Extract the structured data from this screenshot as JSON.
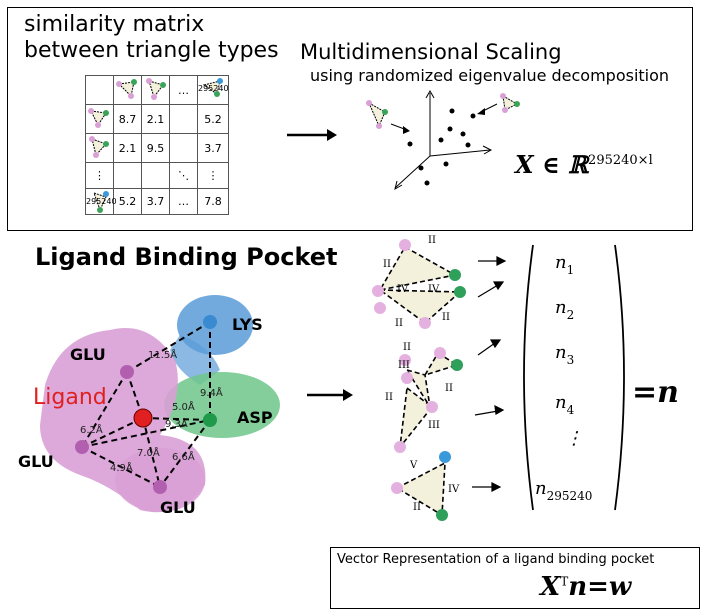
{
  "mds_panel": {
    "title_line1": "similarity matrix",
    "title_line2": "between triangle types",
    "mds_title": "Multidimensional Scaling",
    "mds_subtitle": "using randomized eigenvalue decomposition",
    "matrix": {
      "header_ids": [
        "",
        "",
        "",
        "…",
        "295240"
      ],
      "rows": [
        {
          "id": "",
          "cells": [
            "8.7",
            "2.1",
            "",
            "5.2"
          ]
        },
        {
          "id": "",
          "cells": [
            "2.1",
            "9.5",
            "",
            "3.7"
          ]
        },
        {
          "id": "⋮",
          "cells": [
            "",
            "",
            "⋱",
            "⋮"
          ]
        },
        {
          "id": "295240",
          "cells": [
            "5.2",
            "3.7",
            "…",
            "7.8"
          ]
        }
      ]
    },
    "embedding_label_main": "X ∈ ℝ",
    "embedding_label_sup": "295240×l"
  },
  "pocket_panel": {
    "title": "Ligand Binding Pocket",
    "residues": [
      "LYS",
      "GLU",
      "GLU",
      "GLU",
      "ASP"
    ],
    "ligand_label": "Ligand",
    "distances": [
      "11.5Å",
      "9.4Å",
      "5.0Å",
      "9.3Å",
      "6.2Å",
      "4.9Å",
      "7.0Å",
      "6.6Å"
    ]
  },
  "triangle_labels": [
    "II",
    "IV",
    "II",
    "IV",
    "II",
    "II",
    "II",
    "III",
    "II",
    "II",
    "III",
    "V",
    "IV",
    "II"
  ],
  "count_vector": {
    "entries": [
      {
        "base": "n",
        "sub": "1"
      },
      {
        "base": "n",
        "sub": "2"
      },
      {
        "base": "n",
        "sub": "3"
      },
      {
        "base": "n",
        "sub": "4"
      },
      {
        "base": "⋮",
        "sub": ""
      },
      {
        "base": "n",
        "sub": "295240"
      }
    ],
    "equals": "=n"
  },
  "result_box": {
    "caption": "Vector Representation of a ligand binding pocket",
    "equation_x": "X",
    "equation_sup": "T",
    "equation_rest": "n=w"
  },
  "colors": {
    "lys_blue": "#5b9bd8",
    "asp_green": "#6fc58a",
    "glu_pink": "#d9a0d6",
    "ligand_red": "#e02020",
    "tri_fill": "#f3f0dc"
  }
}
